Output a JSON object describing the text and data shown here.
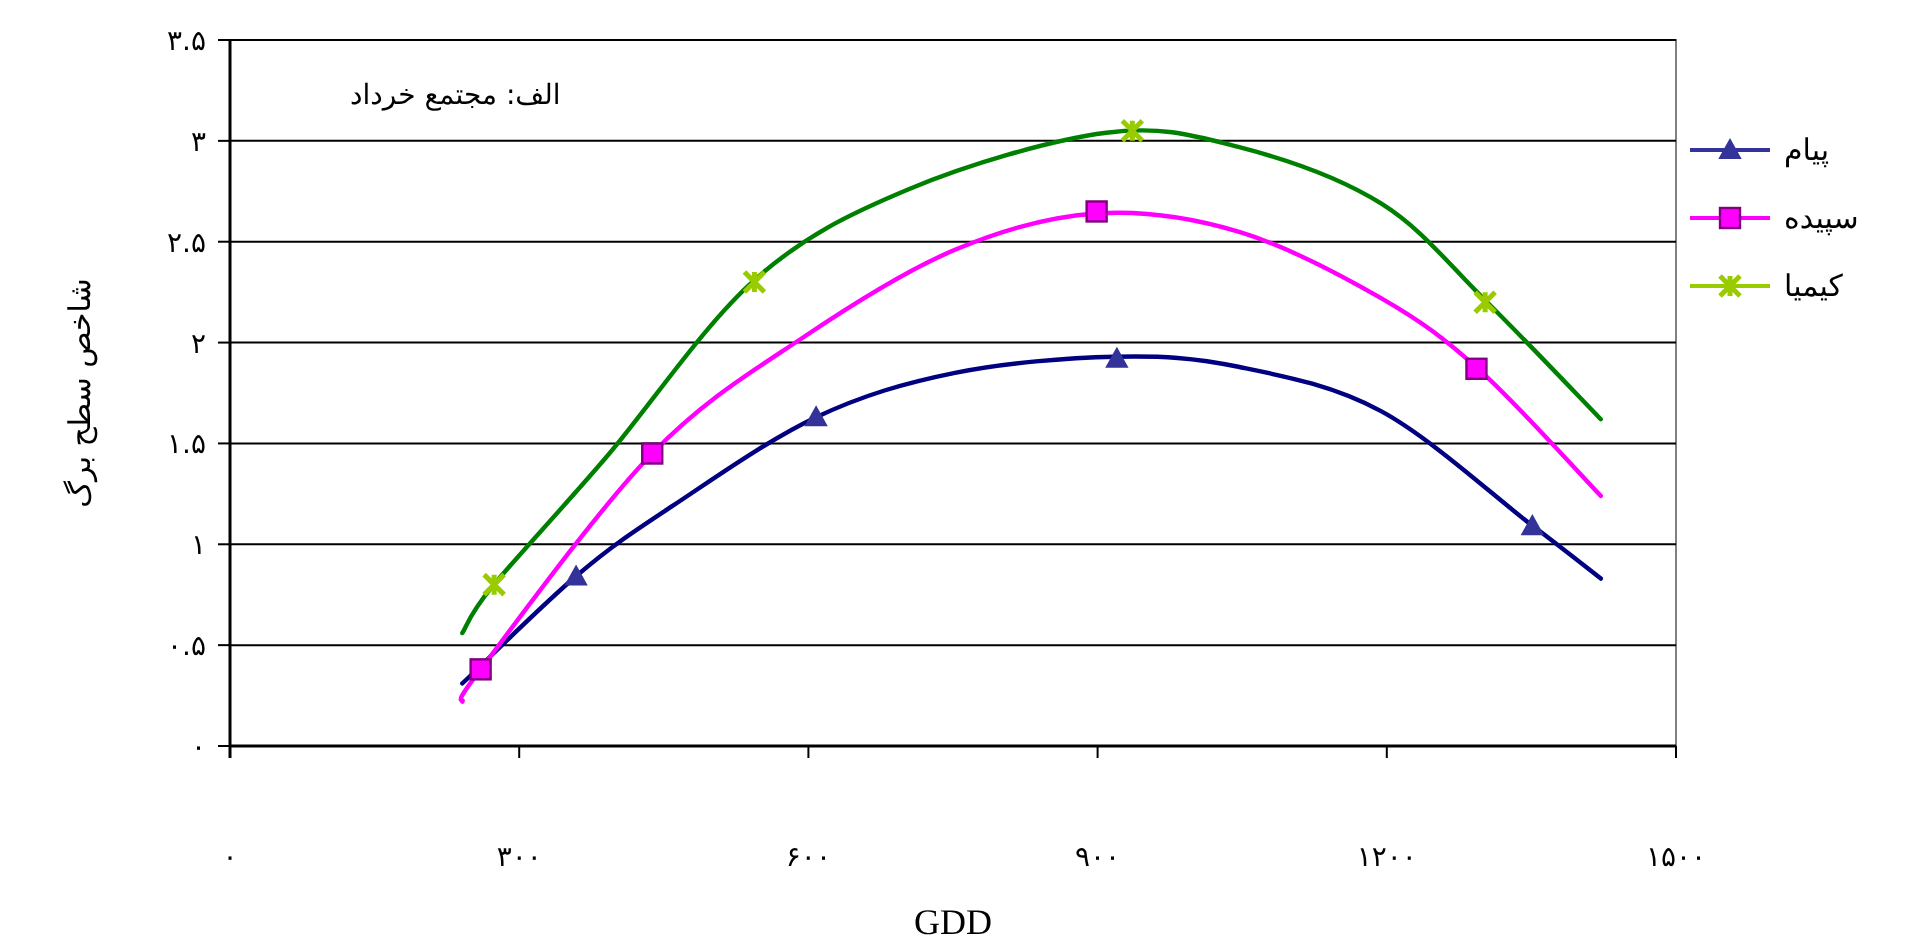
{
  "chart_data": {
    "type": "scatter",
    "xlabel": "GDD",
    "ylabel": "شاخص سطح برگ",
    "annotations": [
      "الف: مجتمع خرداد"
    ],
    "xlim": [
      0,
      1500
    ],
    "ylim": [
      0,
      3.5
    ],
    "xticks": [
      {
        "value": 0,
        "label": "۰"
      },
      {
        "value": 300,
        "label": "۳۰۰"
      },
      {
        "value": 600,
        "label": "۶۰۰"
      },
      {
        "value": 900,
        "label": "۹۰۰"
      },
      {
        "value": 1200,
        "label": "۱۲۰۰"
      },
      {
        "value": 1500,
        "label": "۱۵۰۰"
      }
    ],
    "yticks": [
      {
        "value": 0,
        "label": "۰"
      },
      {
        "value": 0.5,
        "label": "۰.۵"
      },
      {
        "value": 1,
        "label": "۱"
      },
      {
        "value": 1.5,
        "label": "۱.۵"
      },
      {
        "value": 2,
        "label": "۲"
      },
      {
        "value": 2.5,
        "label": "۲.۵"
      },
      {
        "value": 3,
        "label": "۳"
      },
      {
        "value": 3.5,
        "label": "۳.۵"
      }
    ],
    "grid": "y",
    "legend": "right",
    "series": [
      {
        "name": "پیام",
        "type": "scatter",
        "marker": "triangle",
        "color": "#333399",
        "x": [
          359,
          608,
          920,
          1351
        ],
        "values": [
          0.84,
          1.63,
          1.92,
          1.09
        ]
      },
      {
        "name": "سپیده",
        "type": "scatter",
        "marker": "square",
        "color": "#ff00ff",
        "x": [
          260,
          438,
          899,
          1293
        ],
        "values": [
          0.38,
          1.45,
          2.65,
          1.87
        ]
      },
      {
        "name": "کیمیا",
        "type": "scatter",
        "marker": "cross",
        "color": "#99cc00",
        "x": [
          274,
          544,
          936,
          1302
        ],
        "values": [
          0.8,
          2.3,
          3.05,
          2.2
        ]
      },
      {
        "type": "line",
        "color": "#000080",
        "x": [
          241,
          361,
          459,
          608,
          752,
          918,
          1046,
          1194,
          1349,
          1422
        ],
        "values": [
          0.31,
          0.85,
          1.19,
          1.63,
          1.85,
          1.93,
          1.88,
          1.66,
          1.1,
          0.83
        ]
      },
      {
        "type": "line",
        "color": "#ff00ff",
        "x": [
          241,
          260,
          438,
          596,
          752,
          899,
          1046,
          1194,
          1297,
          1422
        ],
        "values": [
          0.22,
          0.38,
          1.45,
          2.03,
          2.46,
          2.64,
          2.55,
          2.22,
          1.86,
          1.24
        ]
      },
      {
        "type": "line",
        "color": "#008000",
        "x": [
          241,
          272,
          390,
          544,
          704,
          909,
          1046,
          1194,
          1302,
          1422
        ],
        "values": [
          0.56,
          0.79,
          1.43,
          2.31,
          2.76,
          3.04,
          2.97,
          2.69,
          2.21,
          1.62
        ]
      }
    ]
  }
}
